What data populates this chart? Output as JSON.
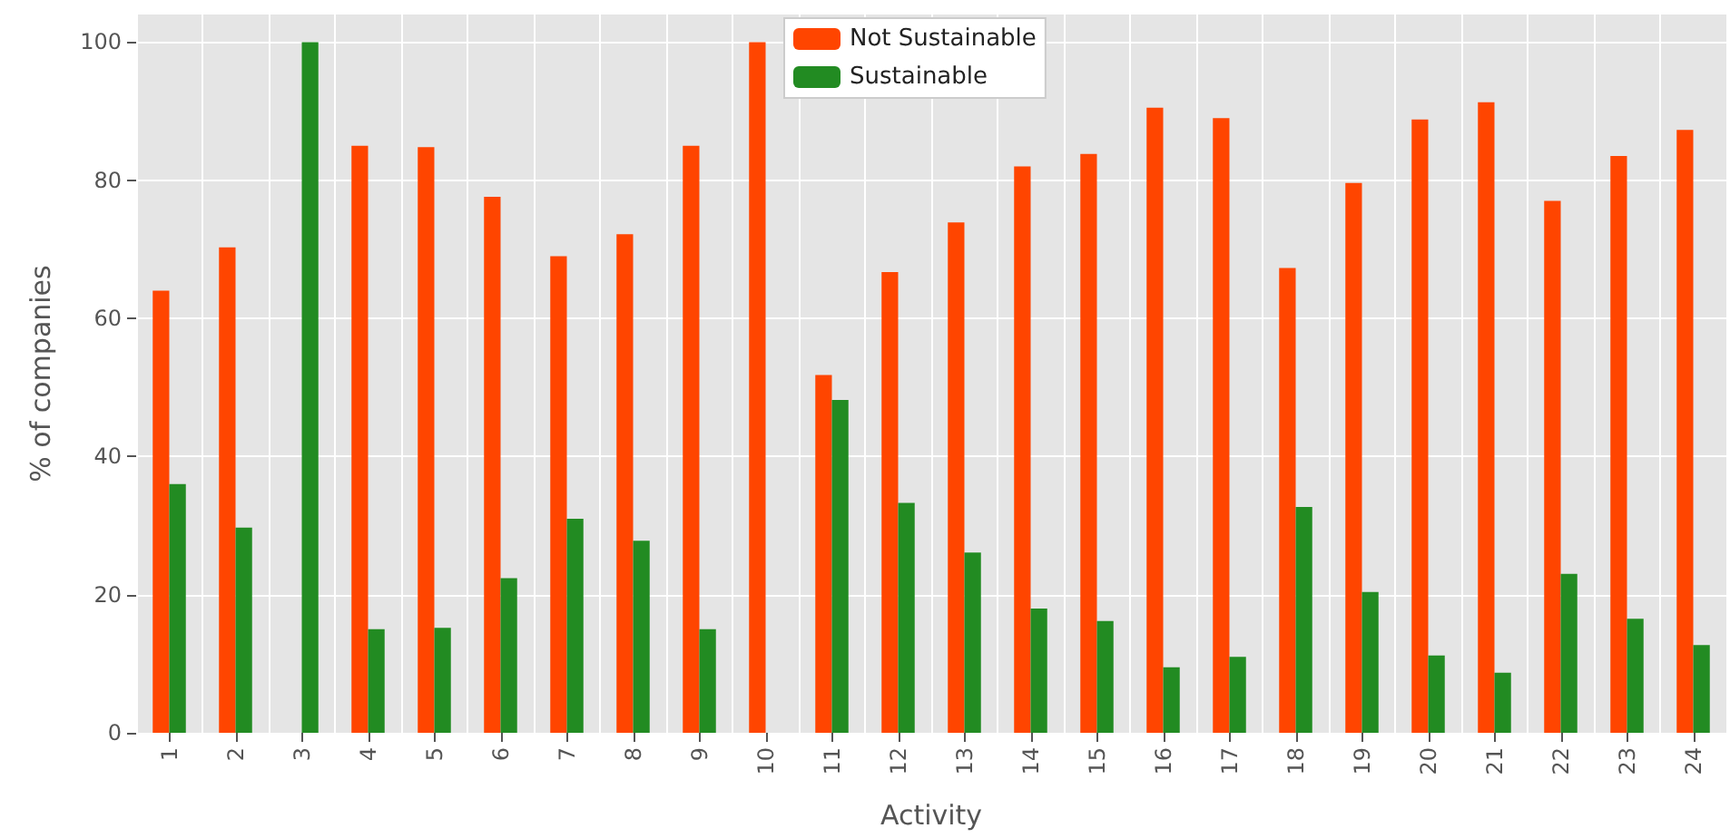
{
  "chart_data": {
    "type": "bar",
    "xlabel": "Activity",
    "ylabel": "% of companies",
    "categories": [
      "1",
      "2",
      "3",
      "4",
      "5",
      "6",
      "7",
      "8",
      "9",
      "10",
      "11",
      "12",
      "13",
      "14",
      "15",
      "16",
      "17",
      "18",
      "19",
      "20",
      "21",
      "22",
      "23",
      "24"
    ],
    "series": [
      {
        "name": "Not Sustainable",
        "color": "#ff4500",
        "values": [
          64,
          70.3,
          0,
          85,
          84.8,
          77.6,
          69,
          72.2,
          85,
          100,
          51.8,
          66.7,
          73.9,
          82,
          83.8,
          90.5,
          89,
          67.3,
          79.6,
          88.8,
          91.3,
          77,
          83.5,
          87.3
        ]
      },
      {
        "name": "Sustainable",
        "color": "#228b22",
        "values": [
          36,
          29.7,
          100,
          15,
          15.2,
          22.4,
          31,
          27.8,
          15,
          0,
          48.2,
          33.3,
          26.1,
          18,
          16.2,
          9.5,
          11,
          32.7,
          20.4,
          11.2,
          8.7,
          23,
          16.5,
          12.7
        ]
      }
    ],
    "ylim": [
      0,
      104
    ],
    "yticks": [
      0,
      20,
      40,
      60,
      80,
      100
    ],
    "grid": true,
    "legend": "top"
  }
}
